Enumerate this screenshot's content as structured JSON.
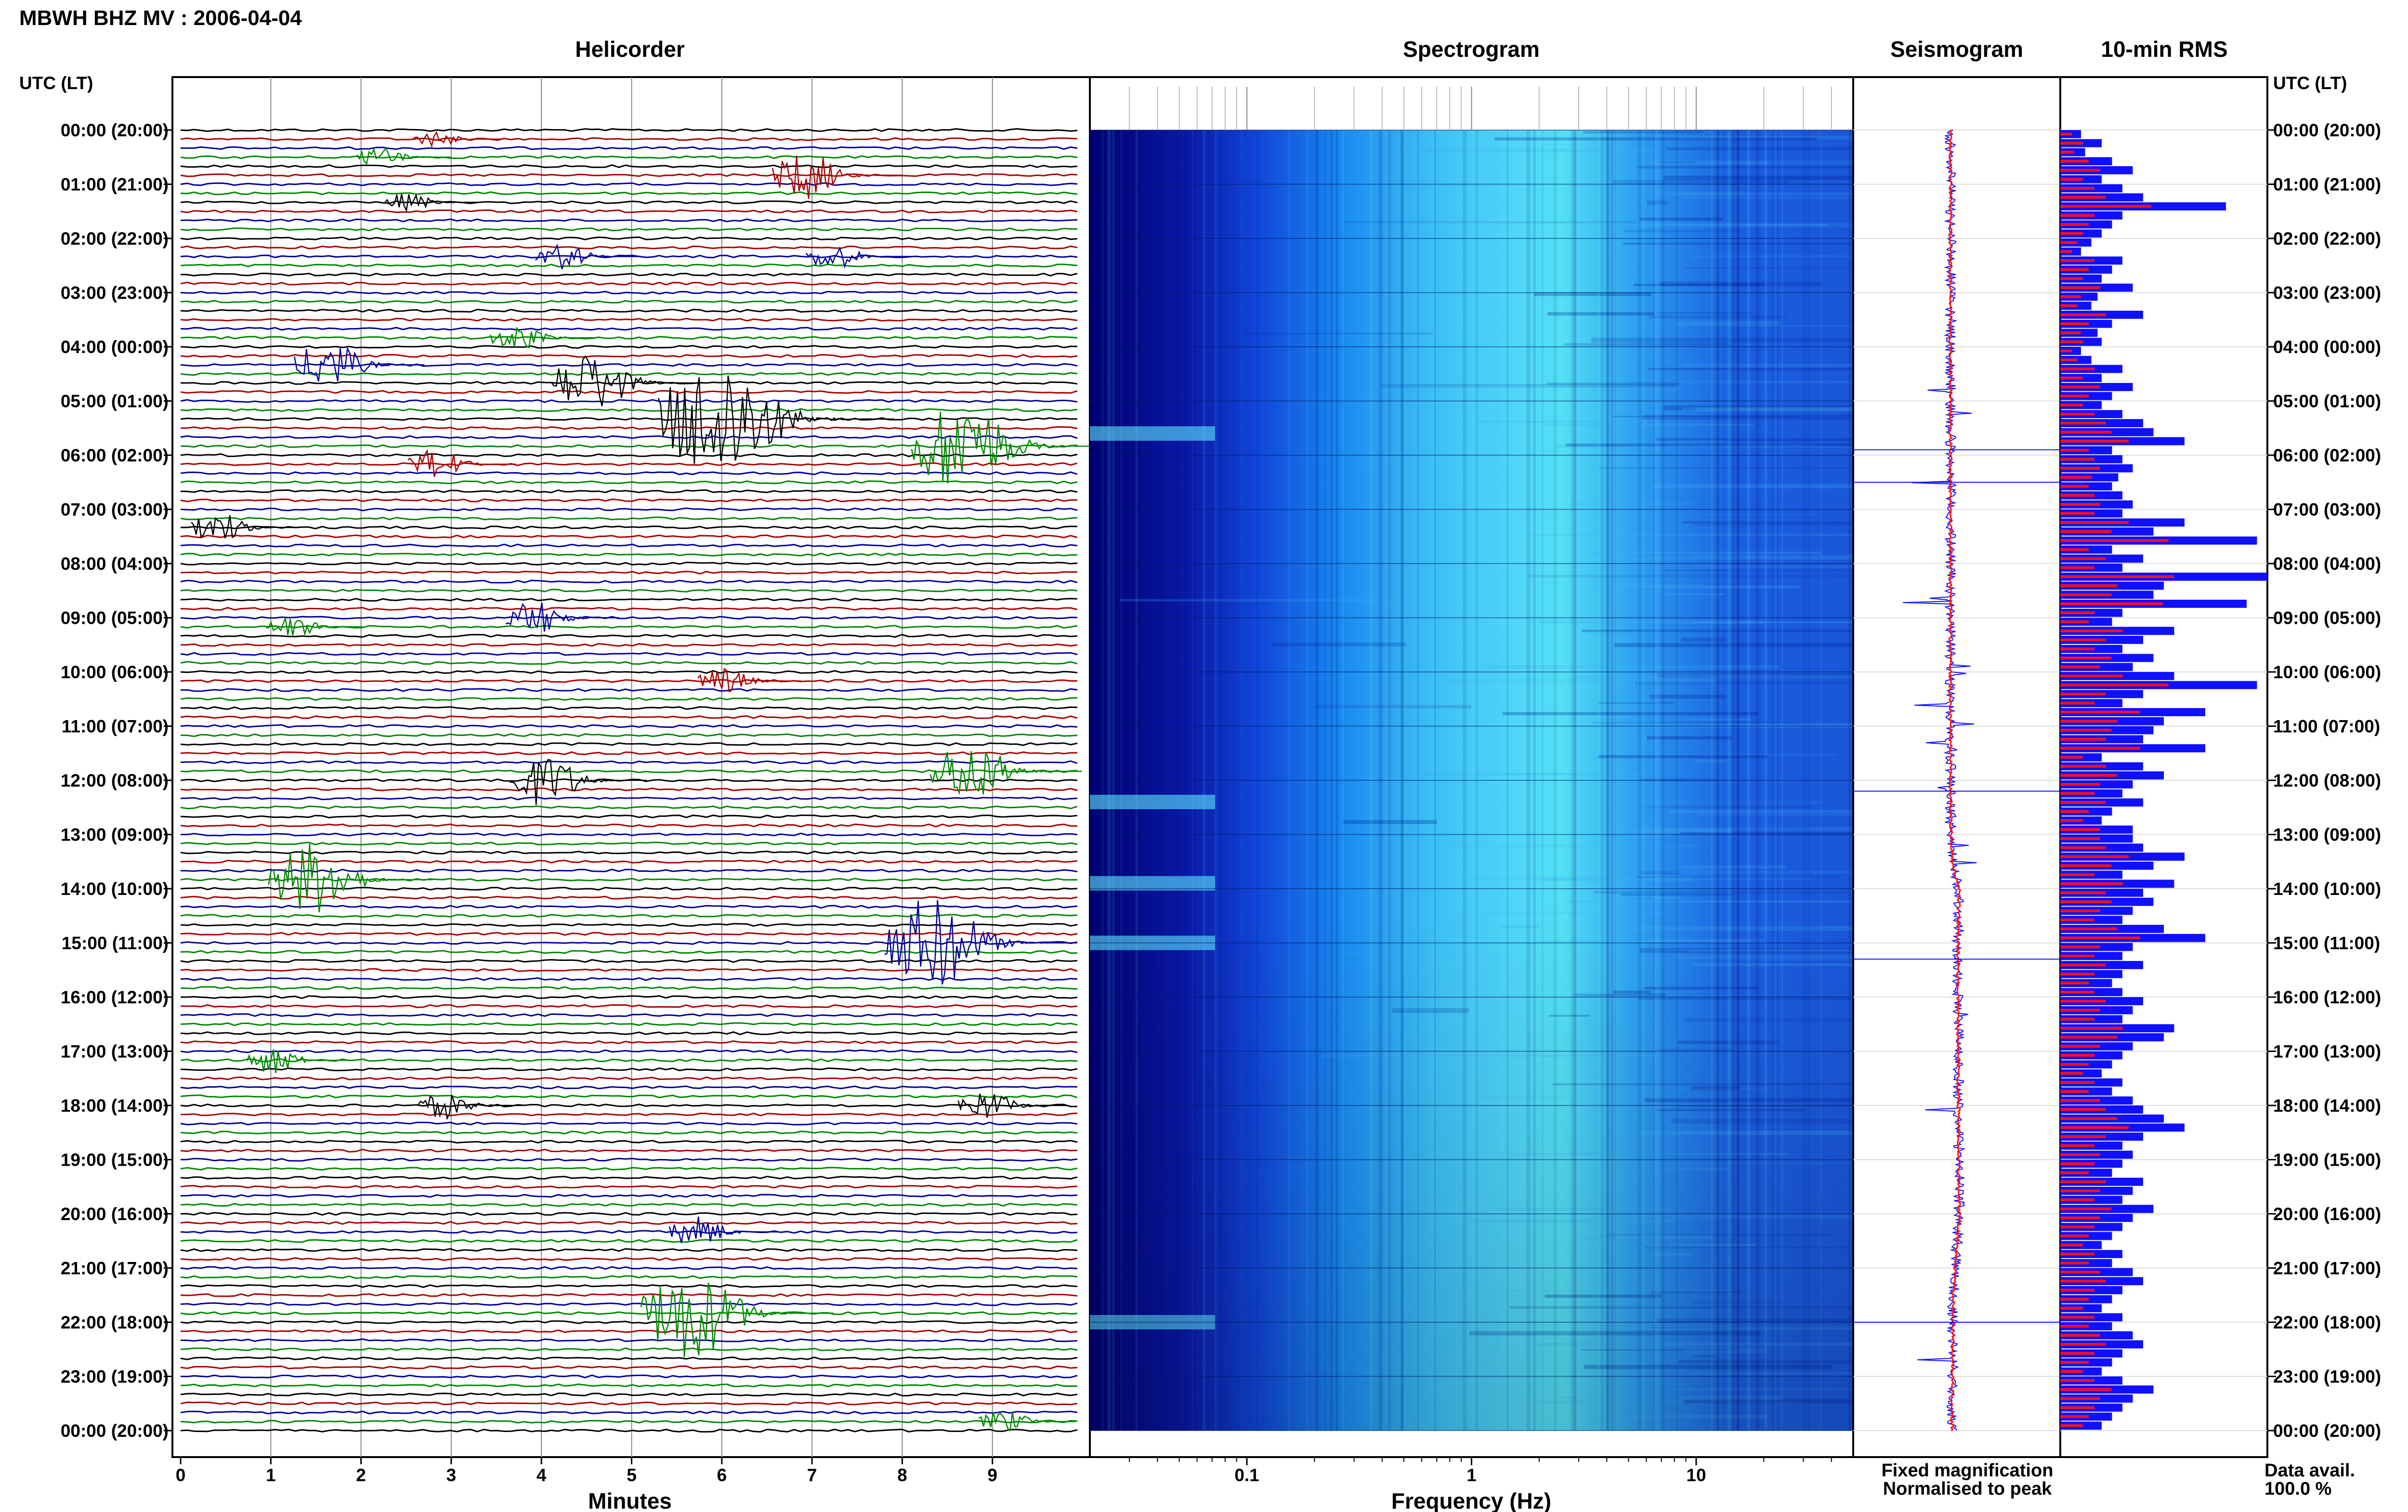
{
  "header": {
    "title": "MBWH BHZ MV : 2006-04-04",
    "utc_label": "UTC (LT)",
    "utc_label_right": "UTC (LT)"
  },
  "panels": {
    "helicorder_title": "Helicorder",
    "spectrogram_title": "Spectrogram",
    "seismogram_title": "Seismogram",
    "rms_title": "10-min RMS"
  },
  "legend": {
    "fixed": "Fixed magnification",
    "normalised": "Normalised to peak",
    "fixed_color": "#1010ff",
    "normalised_color": "#ff1010"
  },
  "data_avail": {
    "label": "Data avail.",
    "value": "100.0 %"
  },
  "colors": {
    "trace_colors": [
      "#000000",
      "#aa0000",
      "#000099",
      "#008800"
    ],
    "spec_low": "#00008c",
    "spec_high": "#55ffff",
    "rms_fixed": "#1010ff",
    "rms_normalised": "#ff1010"
  },
  "chart_data": [
    {
      "type": "line",
      "title": "Helicorder",
      "xlabel": "Minutes",
      "ylabel": "UTC (LT)",
      "xlim": [
        0,
        10
      ],
      "x_ticks": [
        "0",
        "1",
        "2",
        "3",
        "4",
        "5",
        "6",
        "7",
        "8",
        "9"
      ],
      "y_ticks": [
        "00:00 (20:00)",
        "01:00 (21:00)",
        "02:00 (22:00)",
        "03:00 (23:00)",
        "04:00 (00:00)",
        "05:00 (01:00)",
        "06:00 (02:00)",
        "07:00 (03:00)",
        "08:00 (04:00)",
        "09:00 (05:00)",
        "10:00 (06:00)",
        "11:00 (07:00)",
        "12:00 (08:00)",
        "13:00 (09:00)",
        "14:00 (10:00)",
        "15:00 (11:00)",
        "16:00 (12:00)",
        "17:00 (13:00)",
        "18:00 (14:00)",
        "19:00 (15:00)",
        "20:00 (16:00)",
        "21:00 (17:00)",
        "22:00 (18:00)",
        "23:00 (19:00)",
        "00:00 (20:00)"
      ],
      "traces_per_hour": 6,
      "events": [
        {
          "hour": 0.2,
          "minute": 2.8,
          "amp": 0.3
        },
        {
          "hour": 0.5,
          "minute": 2.2,
          "amp": 0.5
        },
        {
          "hour": 0.9,
          "minute": 6.9,
          "amp": 1.8
        },
        {
          "hour": 1.4,
          "minute": 2.5,
          "amp": 0.4
        },
        {
          "hour": 2.3,
          "minute": 4.2,
          "amp": 0.8
        },
        {
          "hour": 2.4,
          "minute": 7.2,
          "amp": 0.8
        },
        {
          "hour": 3.8,
          "minute": 3.7,
          "amp": 0.8
        },
        {
          "hour": 4.4,
          "minute": 1.6,
          "amp": 1.8
        },
        {
          "hour": 4.7,
          "minute": 4.5,
          "amp": 2.5
        },
        {
          "hour": 5.3,
          "minute": 5.9,
          "amp": 5.5
        },
        {
          "hour": 5.9,
          "minute": 8.6,
          "amp": 4.0
        },
        {
          "hour": 6.2,
          "minute": 2.8,
          "amp": 1.0
        },
        {
          "hour": 7.3,
          "minute": 0.4,
          "amp": 1.0
        },
        {
          "hour": 9.0,
          "minute": 3.9,
          "amp": 1.2
        },
        {
          "hour": 9.2,
          "minute": 1.2,
          "amp": 0.6
        },
        {
          "hour": 10.1,
          "minute": 6.0,
          "amp": 0.8
        },
        {
          "hour": 11.8,
          "minute": 8.7,
          "amp": 2.5
        },
        {
          "hour": 12.0,
          "minute": 4.0,
          "amp": 2.0
        },
        {
          "hour": 13.9,
          "minute": 1.4,
          "amp": 3.0
        },
        {
          "hour": 15.0,
          "minute": 8.3,
          "amp": 4.0
        },
        {
          "hour": 17.1,
          "minute": 1.0,
          "amp": 0.8
        },
        {
          "hour": 18.0,
          "minute": 2.9,
          "amp": 0.8
        },
        {
          "hour": 18.0,
          "minute": 8.9,
          "amp": 1.0
        },
        {
          "hour": 20.3,
          "minute": 5.7,
          "amp": 1.0
        },
        {
          "hour": 21.9,
          "minute": 5.6,
          "amp": 4.0
        },
        {
          "hour": 23.9,
          "minute": 9.1,
          "amp": 0.6
        }
      ]
    },
    {
      "type": "heatmap",
      "title": "Spectrogram",
      "xlabel": "Frequency (Hz)",
      "x_scale": "log",
      "xlim": [
        0.02,
        50
      ],
      "x_ticks": [
        "0.1",
        "1",
        "10"
      ],
      "y_ticks_hours": 24
    },
    {
      "type": "line",
      "title": "Seismogram",
      "series": [
        {
          "name": "Fixed magnification",
          "color": "#1010ff"
        },
        {
          "name": "Normalised to peak",
          "color": "#ff1010"
        }
      ],
      "mean_drift_hours": [
        0,
        12.5,
        13.5,
        14.0,
        15.0,
        20.0,
        21.5,
        24.0
      ],
      "mean_drift_values": [
        0,
        0,
        0.05,
        0.3,
        0.25,
        0.3,
        0.1,
        0.05
      ]
    },
    {
      "type": "bar",
      "title": "10-min RMS",
      "orientation": "horizontal",
      "series": [
        {
          "name": "Fixed magnification",
          "color": "#1010ff",
          "values": [
            0.1,
            0.2,
            0.12,
            0.25,
            0.35,
            0.2,
            0.3,
            0.4,
            0.8,
            0.3,
            0.25,
            0.2,
            0.15,
            0.1,
            0.3,
            0.25,
            0.2,
            0.35,
            0.18,
            0.15,
            0.4,
            0.25,
            0.18,
            0.2,
            0.1,
            0.15,
            0.3,
            0.2,
            0.35,
            0.25,
            0.2,
            0.3,
            0.4,
            0.45,
            0.6,
            0.25,
            0.3,
            0.35,
            0.28,
            0.25,
            0.3,
            0.35,
            0.3,
            0.6,
            0.45,
            0.95,
            0.25,
            0.4,
            0.3,
            1.0,
            0.5,
            0.45,
            0.9,
            0.3,
            0.25,
            0.55,
            0.4,
            0.3,
            0.45,
            0.35,
            0.55,
            0.95,
            0.4,
            0.3,
            0.7,
            0.5,
            0.45,
            0.4,
            0.7,
            0.2,
            0.4,
            0.5,
            0.35,
            0.3,
            0.4,
            0.25,
            0.2,
            0.35,
            0.35,
            0.4,
            0.6,
            0.45,
            0.3,
            0.55,
            0.4,
            0.45,
            0.35,
            0.3,
            0.5,
            0.7,
            0.35,
            0.3,
            0.4,
            0.3,
            0.25,
            0.3,
            0.4,
            0.35,
            0.3,
            0.55,
            0.5,
            0.35,
            0.3,
            0.25,
            0.2,
            0.3,
            0.25,
            0.35,
            0.4,
            0.5,
            0.6,
            0.4,
            0.3,
            0.35,
            0.3,
            0.25,
            0.4,
            0.35,
            0.3,
            0.45,
            0.35,
            0.3,
            0.25,
            0.2,
            0.3,
            0.25,
            0.35,
            0.4,
            0.3,
            0.25,
            0.2,
            0.3,
            0.25,
            0.35,
            0.4,
            0.3,
            0.25,
            0.2,
            0.3,
            0.45,
            0.35,
            0.3,
            0.25,
            0.2
          ]
        }
      ]
    }
  ]
}
